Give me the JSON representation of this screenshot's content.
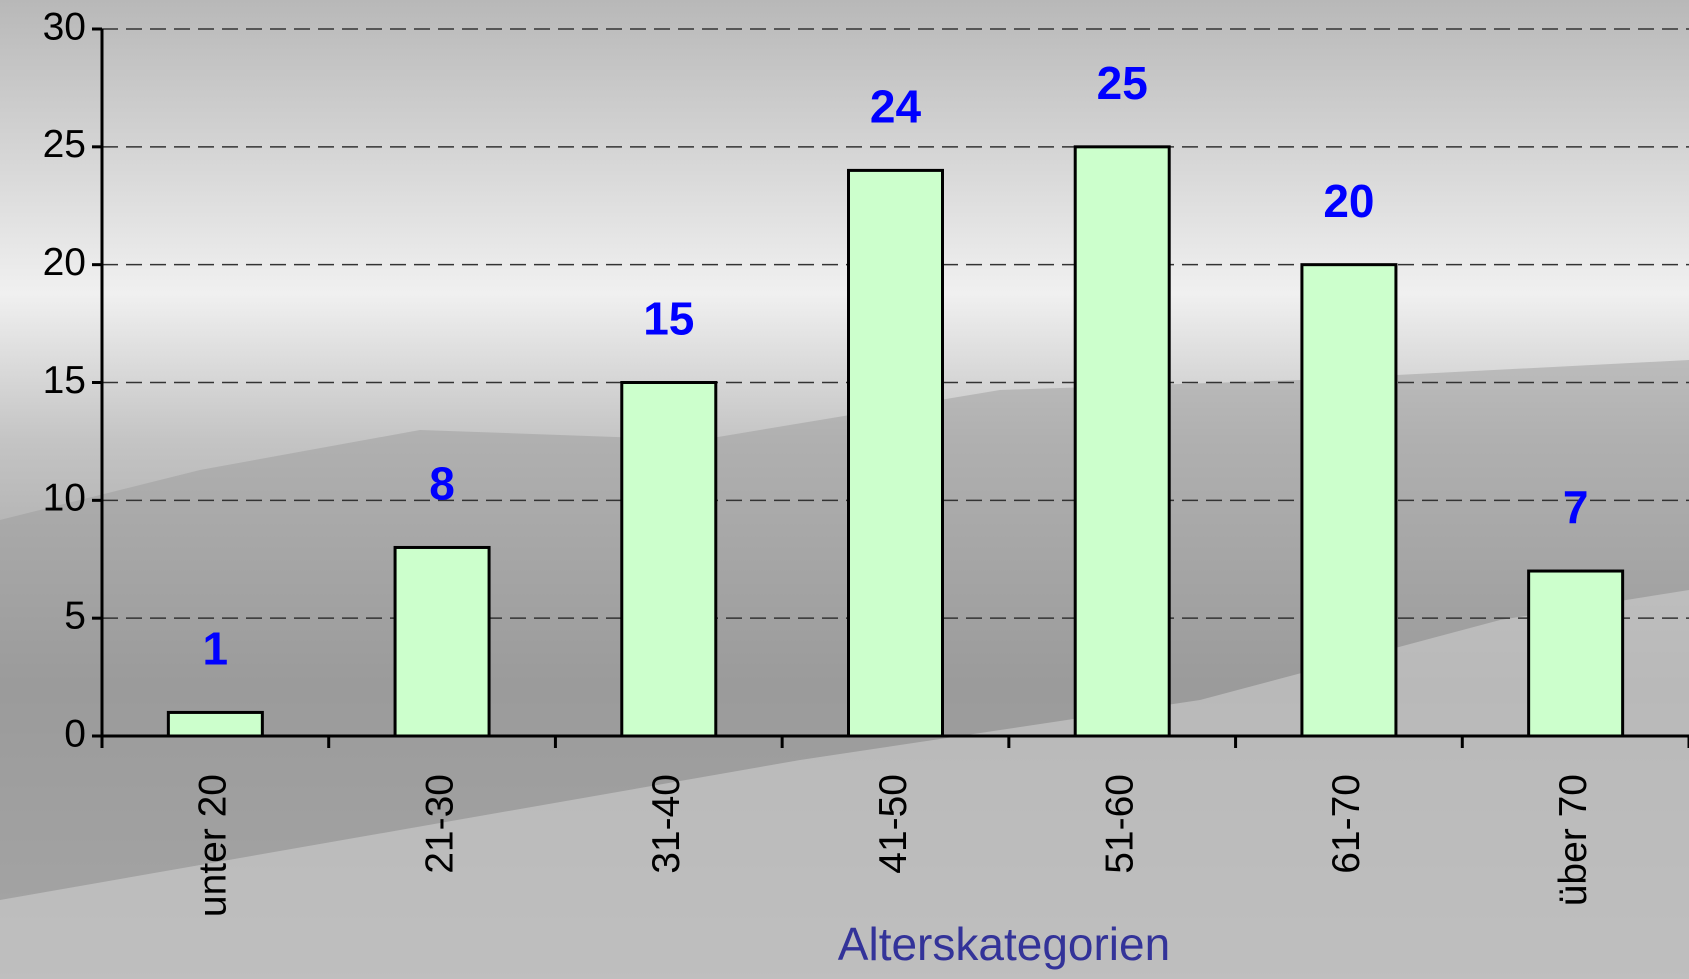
{
  "chart_data": {
    "type": "bar",
    "xlabel": "Alterskategorien",
    "categories": [
      "unter 20",
      "21-30",
      "31-40",
      "41-50",
      "51-60",
      "61-70",
      "über 70"
    ],
    "values": [
      1,
      8,
      15,
      24,
      25,
      20,
      7
    ],
    "color": "#ccffcc",
    "label_color": "#0000ff",
    "ylim": [
      0,
      30
    ],
    "yticks": [
      0,
      5,
      10,
      15,
      20,
      25,
      30
    ],
    "grid": true
  }
}
